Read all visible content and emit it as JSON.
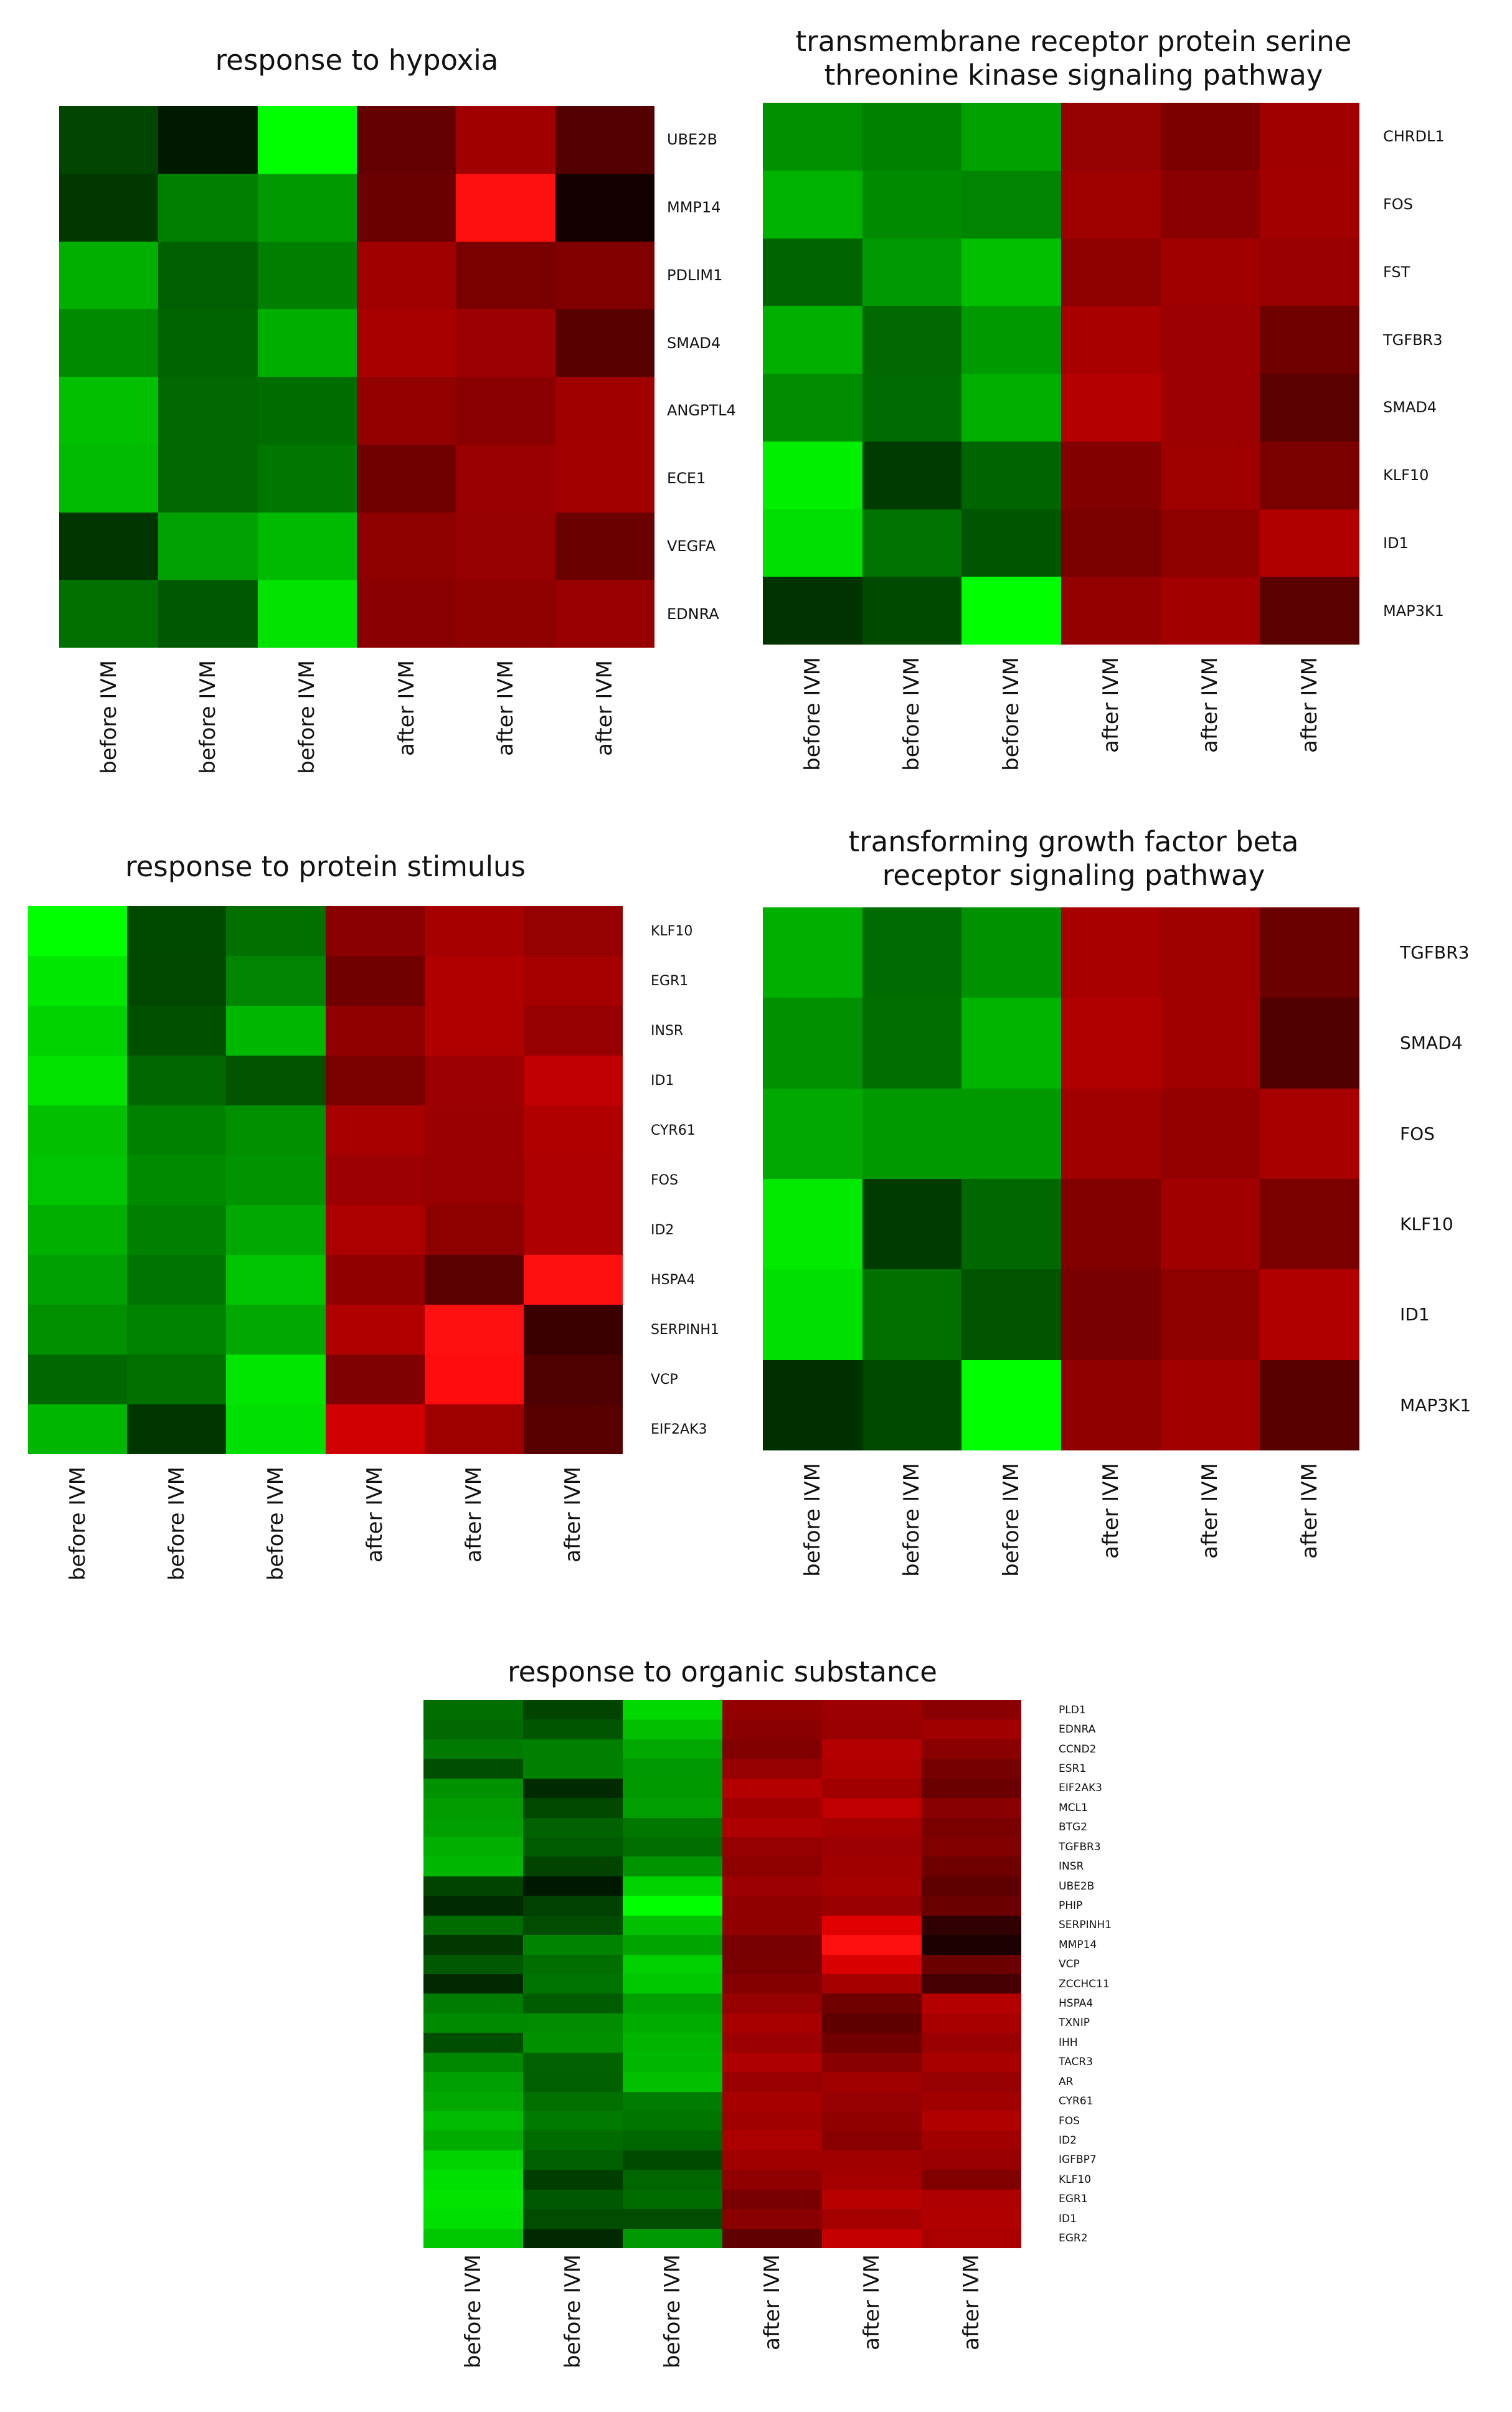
{
  "panels": [
    {
      "title": "response to hypoxia",
      "genes": [
        "UBE2B",
        "MMP14",
        "PDLIM1",
        "SMAD4",
        "ANGPTL4",
        "ECE1",
        "VEGFA",
        "EDNRA"
      ],
      "columns": [
        "before IVM",
        "before IVM",
        "before IVM",
        "after IVM",
        "after IVM",
        "after IVM"
      ],
      "colors": [
        [
          "#004500",
          "#001a00",
          "#00ff00",
          "#650000",
          "#a00000",
          "#550000"
        ],
        [
          "#003800",
          "#008000",
          "#009a00",
          "#6a0000",
          "#ff1010",
          "#150000"
        ],
        [
          "#00b000",
          "#005f00",
          "#007f00",
          "#a00000",
          "#7a0000",
          "#800000"
        ],
        [
          "#008a00",
          "#006500",
          "#00ae00",
          "#a80000",
          "#9c0000",
          "#580000"
        ],
        [
          "#00c000",
          "#006900",
          "#006d00",
          "#920000",
          "#8a0000",
          "#a00000"
        ],
        [
          "#00bb00",
          "#006a00",
          "#007700",
          "#6e0000",
          "#9a0000",
          "#a20000"
        ],
        [
          "#003500",
          "#00a100",
          "#00ba00",
          "#8e0000",
          "#960000",
          "#6a0000"
        ],
        [
          "#007000",
          "#005900",
          "#00e200",
          "#8a0000",
          "#8f0000",
          "#980000"
        ]
      ]
    },
    {
      "title": "transmembrane receptor protein serine\nthreonine kinase signaling pathway",
      "genes": [
        "CHRDL1",
        "FOS",
        "FST",
        "TGFBR3",
        "SMAD4",
        "KLF10",
        "ID1",
        "MAP3K1"
      ],
      "columns": [
        "before IVM",
        "before IVM",
        "before IVM",
        "after IVM",
        "after IVM",
        "after IVM"
      ],
      "colors": [
        [
          "#009000",
          "#008200",
          "#00a200",
          "#950000",
          "#7c0000",
          "#a00000"
        ],
        [
          "#00b200",
          "#008a00",
          "#008500",
          "#9e0000",
          "#8a0000",
          "#a20000"
        ],
        [
          "#006500",
          "#009800",
          "#00c000",
          "#8c0000",
          "#a00000",
          "#980000"
        ],
        [
          "#00b000",
          "#006a00",
          "#009a00",
          "#a80000",
          "#9c0000",
          "#6e0000"
        ],
        [
          "#008d00",
          "#006b00",
          "#00b000",
          "#b40000",
          "#9c0000",
          "#5a0000"
        ],
        [
          "#00f000",
          "#003c00",
          "#006500",
          "#820000",
          "#9e0000",
          "#7a0000"
        ],
        [
          "#00e000",
          "#007200",
          "#005500",
          "#7a0000",
          "#8e0000",
          "#b00000"
        ],
        [
          "#003300",
          "#004a00",
          "#00ff00",
          "#920000",
          "#a20000",
          "#5a0000"
        ]
      ]
    },
    {
      "title": "response to protein stimulus",
      "genes": [
        "KLF10",
        "EGR1",
        "INSR",
        "ID1",
        "CYR61",
        "FOS",
        "ID2",
        "HSPA4",
        "SERPINH1",
        "VCP",
        "EIF2AK3"
      ],
      "columns": [
        "before IVM",
        "before IVM",
        "before IVM",
        "after IVM",
        "after IVM",
        "after IVM"
      ],
      "colors": [
        [
          "#00ff00",
          "#004a00",
          "#007000",
          "#8a0000",
          "#a60000",
          "#950000"
        ],
        [
          "#00e800",
          "#004800",
          "#008500",
          "#700000",
          "#b00000",
          "#a40000"
        ],
        [
          "#00d400",
          "#005000",
          "#00b800",
          "#900000",
          "#b00000",
          "#960000"
        ],
        [
          "#00e400",
          "#006800",
          "#005400",
          "#7a0000",
          "#9c0000",
          "#c00000"
        ],
        [
          "#00c000",
          "#008200",
          "#009000",
          "#a80000",
          "#9a0000",
          "#b00000"
        ],
        [
          "#00c400",
          "#008a00",
          "#009400",
          "#9c0000",
          "#980000",
          "#ae0000"
        ],
        [
          "#00b000",
          "#008000",
          "#00a800",
          "#ac0000",
          "#8c0000",
          "#ae0000"
        ],
        [
          "#00a000",
          "#007400",
          "#00c400",
          "#900000",
          "#5a0000",
          "#ff1010"
        ],
        [
          "#009000",
          "#008400",
          "#00a800",
          "#b00000",
          "#ff1010",
          "#3a0000"
        ],
        [
          "#006800",
          "#007000",
          "#00e600",
          "#7e0000",
          "#ff0c0c",
          "#4e0000"
        ],
        [
          "#00b800",
          "#003500",
          "#00e000",
          "#d00000",
          "#9e0000",
          "#580000"
        ]
      ]
    },
    {
      "title": "transforming growth factor beta\nreceptor signaling pathway",
      "genes": [
        "TGFBR3",
        "SMAD4",
        "FOS",
        "KLF10",
        "ID1",
        "MAP3K1"
      ],
      "columns": [
        "before IVM",
        "before IVM",
        "before IVM",
        "after IVM",
        "after IVM",
        "after IVM"
      ],
      "colors": [
        [
          "#00b000",
          "#006b00",
          "#009200",
          "#a80000",
          "#9e0000",
          "#6a0000"
        ],
        [
          "#009000",
          "#006e00",
          "#00b400",
          "#b00000",
          "#a00000",
          "#500000"
        ],
        [
          "#00a800",
          "#009a00",
          "#009a00",
          "#a00000",
          "#920000",
          "#a80000"
        ],
        [
          "#00ea00",
          "#003c00",
          "#006800",
          "#800000",
          "#a00000",
          "#7a0000"
        ],
        [
          "#00e000",
          "#007000",
          "#005400",
          "#780000",
          "#8e0000",
          "#b00000"
        ],
        [
          "#003000",
          "#004a00",
          "#00ff00",
          "#900000",
          "#a20000",
          "#560000"
        ]
      ]
    },
    {
      "title": "response to organic substance",
      "genes": [
        "PLD1",
        "EDNRA",
        "CCND2",
        "ESR1",
        "EIF2AK3",
        "MCL1",
        "BTG2",
        "TGFBR3",
        "INSR",
        "UBE2B",
        "PHIP",
        "SERPINH1",
        "MMP14",
        "VCP",
        "ZCCHC11",
        "HSPA4",
        "TXNIP",
        "IHH",
        "TACR3",
        "AR",
        "CYR61",
        "FOS",
        "ID2",
        "IGFBP7",
        "KLF10",
        "EGR1",
        "ID1",
        "EGR2"
      ],
      "columns": [
        "before IVM",
        "before IVM",
        "before IVM",
        "after IVM",
        "after IVM",
        "after IVM"
      ],
      "colors": [
        [
          "#006e00",
          "#004400",
          "#00d800",
          "#920000",
          "#9c0000",
          "#8a0000"
        ],
        [
          "#006a00",
          "#005600",
          "#00c000",
          "#8a0000",
          "#980000",
          "#a00000"
        ],
        [
          "#007a00",
          "#008000",
          "#00a800",
          "#800000",
          "#b40000",
          "#8a0000"
        ],
        [
          "#004e00",
          "#008000",
          "#009800",
          "#960000",
          "#b00000",
          "#760000"
        ],
        [
          "#009200",
          "#002a00",
          "#009a00",
          "#b40000",
          "#a00000",
          "#6a0000"
        ],
        [
          "#009c00",
          "#004800",
          "#009e00",
          "#a00000",
          "#c00000",
          "#880000"
        ],
        [
          "#00a000",
          "#006200",
          "#007800",
          "#ae0000",
          "#a40000",
          "#7a0000"
        ],
        [
          "#00b000",
          "#005c00",
          "#006e00",
          "#960000",
          "#9c0000",
          "#800000"
        ],
        [
          "#00b800",
          "#004400",
          "#009400",
          "#8c0000",
          "#a00000",
          "#6e0000"
        ],
        [
          "#004400",
          "#001800",
          "#00d400",
          "#9c0000",
          "#a40000",
          "#5e0000"
        ],
        [
          "#002a00",
          "#004000",
          "#00ff00",
          "#900000",
          "#9a0000",
          "#6a0000"
        ],
        [
          "#006c00",
          "#004c00",
          "#00c000",
          "#900000",
          "#e00000",
          "#300000"
        ],
        [
          "#003800",
          "#008400",
          "#00a400",
          "#780000",
          "#ff1010",
          "#1a0000"
        ],
        [
          "#005800",
          "#006e00",
          "#00d000",
          "#7a0000",
          "#d80000",
          "#6a0000"
        ],
        [
          "#002800",
          "#007400",
          "#00c800",
          "#840000",
          "#a40000",
          "#440000"
        ],
        [
          "#007c00",
          "#005c00",
          "#00a000",
          "#960000",
          "#6e0000",
          "#b40000"
        ],
        [
          "#008a00",
          "#008c00",
          "#00ac00",
          "#a80000",
          "#5e0000",
          "#a80000"
        ],
        [
          "#004e00",
          "#009000",
          "#00b400",
          "#9c0000",
          "#700000",
          "#9a0000"
        ],
        [
          "#008800",
          "#006200",
          "#00b800",
          "#ae0000",
          "#880000",
          "#a80000"
        ],
        [
          "#00a000",
          "#006000",
          "#00c000",
          "#980000",
          "#a00000",
          "#960000"
        ],
        [
          "#00a800",
          "#007000",
          "#007c00",
          "#a60000",
          "#960000",
          "#a00000"
        ],
        [
          "#00bc00",
          "#007a00",
          "#007600",
          "#a00000",
          "#900000",
          "#b00000"
        ],
        [
          "#00ac00",
          "#006c00",
          "#006600",
          "#ac0000",
          "#8a0000",
          "#a00000"
        ],
        [
          "#00d400",
          "#006000",
          "#004a00",
          "#a00000",
          "#a00000",
          "#980000"
        ],
        [
          "#00e000",
          "#003e00",
          "#006600",
          "#900000",
          "#a40000",
          "#800000"
        ],
        [
          "#00e400",
          "#005800",
          "#006c00",
          "#780000",
          "#b80000",
          "#ae0000"
        ],
        [
          "#00e000",
          "#004c00",
          "#004c00",
          "#8a0000",
          "#a40000",
          "#b00000"
        ],
        [
          "#00c800",
          "#002800",
          "#009800",
          "#600000",
          "#c40000",
          "#aa0000"
        ]
      ]
    }
  ]
}
